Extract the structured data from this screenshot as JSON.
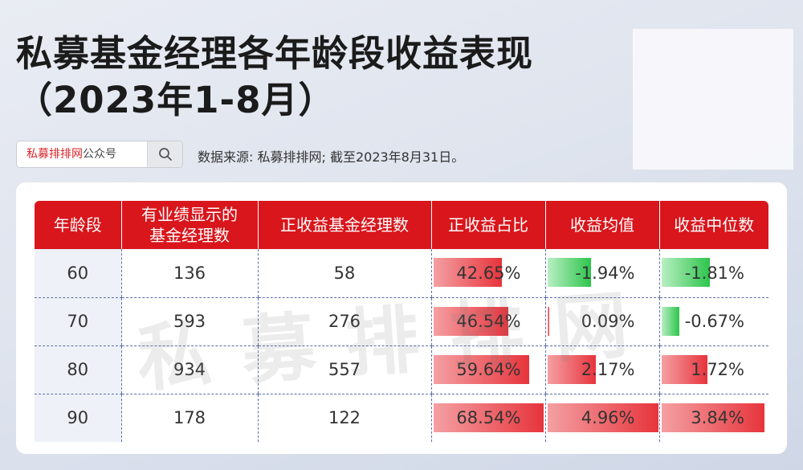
{
  "header": {
    "title_line1": "私募基金经理各年龄段收益表现",
    "title_line2": "（2023年1-8月）"
  },
  "search": {
    "brand_red": "私募排排网",
    "brand_suffix": "公众号",
    "icon": "search-icon"
  },
  "source_note": "数据来源: 私募排排网; 截至2023年8月31日。",
  "watermark": "私募排排网",
  "colors": {
    "header": "#d8161c",
    "positive": "#e7343c",
    "negative": "#2cc54b"
  },
  "chart_data": {
    "type": "table",
    "columns": [
      "年龄段",
      "有业绩显示的基金经理数",
      "正收益基金经理数",
      "正收益占比",
      "收益均值",
      "收益中位数"
    ],
    "columns_display": [
      "年龄段",
      "有业绩显示的\n基金经理数",
      "正收益基金经理数",
      "正收益占比",
      "收益均值",
      "收益中位数"
    ],
    "rows": [
      {
        "age": "60",
        "count": "136",
        "positive_count": "58",
        "positive_ratio": "42.65%",
        "mean": "-1.94%",
        "median": "-1.81%"
      },
      {
        "age": "70",
        "count": "593",
        "positive_count": "276",
        "positive_ratio": "46.54%",
        "mean": "0.09%",
        "median": "-0.67%"
      },
      {
        "age": "80",
        "count": "934",
        "positive_count": "557",
        "positive_ratio": "59.64%",
        "mean": "2.17%",
        "median": "1.72%"
      },
      {
        "age": "90",
        "count": "178",
        "positive_count": "122",
        "positive_ratio": "68.54%",
        "mean": "4.96%",
        "median": "3.84%"
      }
    ],
    "ratio_values": [
      42.65,
      46.54,
      59.64,
      68.54
    ],
    "mean_values": [
      -1.94,
      0.09,
      2.17,
      4.96
    ],
    "median_values": [
      -1.81,
      -0.67,
      1.72,
      3.84
    ]
  }
}
